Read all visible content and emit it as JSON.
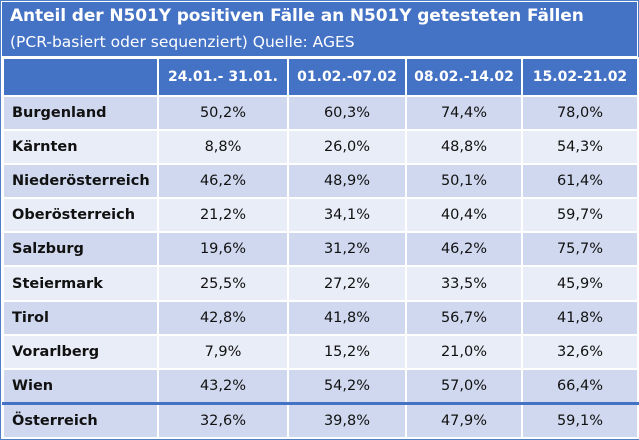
{
  "header": {
    "title": "Anteil der N501Y positiven Fälle an N501Y getesteten Fällen",
    "subtitle": "(PCR-basiert oder sequenziert) Quelle: AGES"
  },
  "chart_data": {
    "type": "table",
    "title": "Anteil der N501Y positiven Fälle an N501Y getesteten Fällen",
    "subtitle": "(PCR-basiert oder sequenziert) Quelle: AGES",
    "columns": [
      "",
      "24.01.- 31.01.",
      "01.02.-07.02",
      "08.02.-14.02",
      "15.02-21.02"
    ],
    "rows": [
      {
        "region": "Burgenland",
        "values": [
          "50,2%",
          "60,3%",
          "74,4%",
          "78,0%"
        ]
      },
      {
        "region": "Kärnten",
        "values": [
          "8,8%",
          "26,0%",
          "48,8%",
          "54,3%"
        ]
      },
      {
        "region": "Niederösterreich",
        "values": [
          "46,2%",
          "48,9%",
          "50,1%",
          "61,4%"
        ]
      },
      {
        "region": "Oberösterreich",
        "values": [
          "21,2%",
          "34,1%",
          "40,4%",
          "59,7%"
        ]
      },
      {
        "region": "Salzburg",
        "values": [
          "19,6%",
          "31,2%",
          "46,2%",
          "75,7%"
        ]
      },
      {
        "region": "Steiermark",
        "values": [
          "25,5%",
          "27,2%",
          "33,5%",
          "45,9%"
        ]
      },
      {
        "region": "Tirol",
        "values": [
          "42,8%",
          "41,8%",
          "56,7%",
          "41,8%"
        ]
      },
      {
        "region": "Vorarlberg",
        "values": [
          "7,9%",
          "15,2%",
          "21,0%",
          "32,6%"
        ]
      },
      {
        "region": "Wien",
        "values": [
          "43,2%",
          "54,2%",
          "57,0%",
          "66,4%"
        ]
      },
      {
        "region": "Österreich",
        "values": [
          "32,6%",
          "39,8%",
          "47,9%",
          "59,1%"
        ]
      }
    ]
  },
  "colors": {
    "header_bg": "#4472c4",
    "row_dark": "#cfd8ee",
    "row_light": "#e9edf7"
  }
}
